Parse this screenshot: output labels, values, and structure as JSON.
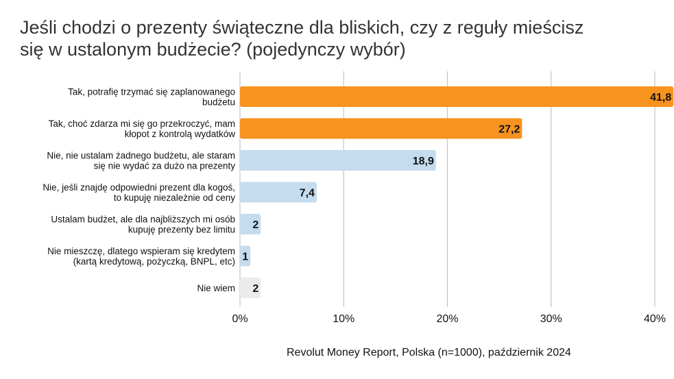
{
  "title_lines": [
    "Jeśli chodzi o prezenty świąteczne dla bliskich, czy z reguły mieścisz",
    "się w ustalonym budżecie? (pojedynczy wybór)"
  ],
  "source": "Revolut Money Report, Polska (n=1000), październik 2024",
  "colors": {
    "orange": "#F7931E",
    "light_blue": "#C5DCEE",
    "light_gray": "#EBEBEB",
    "grid": "#C4C4C4"
  },
  "chart_data": {
    "type": "bar",
    "orientation": "horizontal",
    "title": "Jeśli chodzi o prezenty świąteczne dla bliskich, czy z reguły mieścisz się w ustalonym budżecie? (pojedynczy wybór)",
    "categories": [
      [
        "Tak, potrafię trzymać się zaplanowanego",
        "budżetu"
      ],
      [
        "Tak, choć zdarza mi się go przekroczyć, mam",
        "kłopot z kontrolą wydatków"
      ],
      [
        "Nie, nie ustalam żadnego budżetu, ale staram",
        "się nie wydać za dużo na prezenty"
      ],
      [
        "Nie, jeśli znajdę odpowiedni prezent dla kogoś,",
        "to kupuję niezależnie od ceny"
      ],
      [
        "Ustalam budżet, ale dla najbliższych mi osób",
        "kupuję prezenty bez limitu"
      ],
      [
        "Nie mieszczę, dlatego wspieram się kredytem",
        "(kartą kredytową, pożyczką, BNPL, etc)"
      ],
      [
        "Nie wiem"
      ]
    ],
    "values": [
      41.8,
      27.2,
      18.9,
      7.4,
      2,
      1,
      2
    ],
    "value_labels": [
      "41,8",
      "27,2",
      "18,9",
      "7,4",
      "2",
      "1",
      "2"
    ],
    "bar_colors": [
      "#F7931E",
      "#F7931E",
      "#C5DCEE",
      "#C5DCEE",
      "#C5DCEE",
      "#C5DCEE",
      "#EBEBEB"
    ],
    "xlim": [
      0,
      40
    ],
    "ticks": [
      0,
      10,
      20,
      30,
      40
    ],
    "tick_labels": [
      "0%",
      "10%",
      "20%",
      "30%",
      "40%"
    ],
    "grid": true,
    "legend": false
  }
}
